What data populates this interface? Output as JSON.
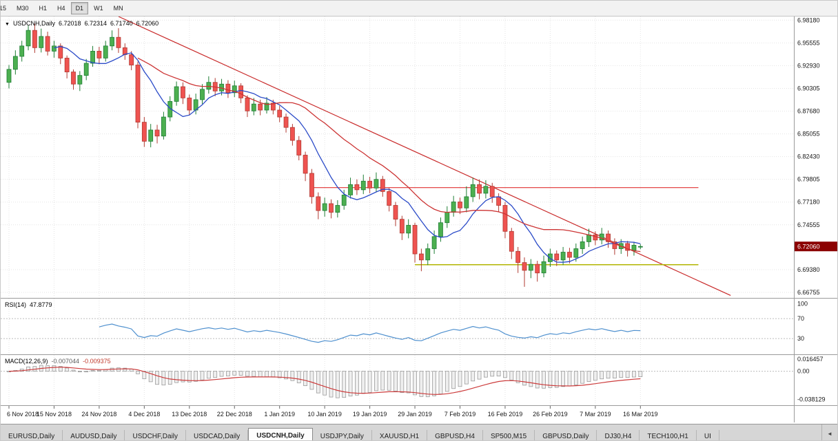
{
  "toolbar": {
    "timeframes": [
      {
        "label": "15",
        "active": false
      },
      {
        "label": "M30",
        "active": false
      },
      {
        "label": "H1",
        "active": false
      },
      {
        "label": "H4",
        "active": false
      },
      {
        "label": "D1",
        "active": true
      },
      {
        "label": "W1",
        "active": false
      },
      {
        "label": "MN",
        "active": false
      }
    ]
  },
  "chart": {
    "title": {
      "symbol": "USDCNH,Daily",
      "open": "6.72018",
      "high": "6.72314",
      "low": "6.71740",
      "close": "6.72060"
    },
    "marker_icon": "▼"
  },
  "colors": {
    "up": "#4caf50",
    "up_border": "#1e7e34",
    "down": "#ef5350",
    "down_border": "#b03a32",
    "ma_fast": "#2b4bc8",
    "ma_slow": "#cc3333",
    "trendline": "#c92a2a",
    "hline": "#e03131",
    "support": "#b2b400",
    "rsi_line": "#4d8fce",
    "macd_signal": "#cc3b3b",
    "macd_bar": "#9a9a9a",
    "price_box_bg": "#8b0000",
    "price_box_text": "#ffffff"
  },
  "chart_data": {
    "type": "candlestick",
    "title": "USDCNH,Daily",
    "y_range": [
      6.662,
      6.986
    ],
    "y_axis_labels": [
      "6.98180",
      "6.95555",
      "6.92930",
      "6.90305",
      "6.87680",
      "6.85055",
      "6.82430",
      "6.79805",
      "6.77180",
      "6.74555",
      "6.69380",
      "6.66755"
    ],
    "current_price": "6.72060",
    "x_tick_indices": [
      0,
      7,
      14,
      21,
      28,
      35,
      42,
      49,
      56,
      63,
      70,
      77,
      84,
      91,
      98
    ],
    "x_tick_labels": [
      "6 Nov 2018",
      "15 Nov 2018",
      "24 Nov 2018",
      "4 Dec 2018",
      "13 Dec 2018",
      "22 Dec 2018",
      "1 Jan 2019",
      "10 Jan 2019",
      "19 Jan 2019",
      "29 Jan 2019",
      "7 Feb 2019",
      "16 Feb 2019",
      "26 Feb 2019",
      "7 Mar 2019",
      "16 Mar 2019"
    ],
    "ohlc": [
      [
        6.91,
        6.93,
        6.903,
        6.925
      ],
      [
        6.925,
        6.947,
        6.919,
        6.94
      ],
      [
        6.94,
        6.958,
        6.934,
        6.952
      ],
      [
        6.952,
        6.9755,
        6.947,
        6.97
      ],
      [
        6.97,
        6.978,
        6.944,
        6.95
      ],
      [
        6.95,
        6.972,
        6.9445,
        6.963
      ],
      [
        6.963,
        6.9685,
        6.941,
        6.946
      ],
      [
        6.946,
        6.958,
        6.9385,
        6.952
      ],
      [
        6.952,
        6.955,
        6.931,
        6.938
      ],
      [
        6.938,
        6.941,
        6.9145,
        6.922
      ],
      [
        6.922,
        6.925,
        6.9015,
        6.908
      ],
      [
        6.908,
        6.923,
        6.9,
        6.918
      ],
      [
        6.918,
        6.937,
        6.9125,
        6.932
      ],
      [
        6.932,
        6.952,
        6.928,
        6.946
      ],
      [
        6.946,
        6.951,
        6.931,
        6.938
      ],
      [
        6.938,
        6.958,
        6.934,
        6.952
      ],
      [
        6.952,
        6.97,
        6.947,
        6.962
      ],
      [
        6.962,
        6.9725,
        6.944,
        6.95
      ],
      [
        6.95,
        6.955,
        6.936,
        6.942
      ],
      [
        6.942,
        6.946,
        6.924,
        6.93
      ],
      [
        6.93,
        6.934,
        6.857,
        6.864
      ],
      [
        6.864,
        6.87,
        6.8355,
        6.842
      ],
      [
        6.842,
        6.862,
        6.835,
        6.855
      ],
      [
        6.855,
        6.861,
        6.8395,
        6.848
      ],
      [
        6.848,
        6.876,
        6.844,
        6.87
      ],
      [
        6.87,
        6.894,
        6.865,
        6.888
      ],
      [
        6.888,
        6.911,
        6.883,
        6.905
      ],
      [
        6.905,
        6.91,
        6.885,
        6.892
      ],
      [
        6.892,
        6.896,
        6.872,
        6.878
      ],
      [
        6.878,
        6.897,
        6.873,
        6.89
      ],
      [
        6.89,
        6.908,
        6.885,
        6.902
      ],
      [
        6.902,
        6.917,
        6.897,
        6.91
      ],
      [
        6.91,
        6.915,
        6.894,
        6.9
      ],
      [
        6.9,
        6.914,
        6.895,
        6.908
      ],
      [
        6.908,
        6.9125,
        6.892,
        6.898
      ],
      [
        6.898,
        6.912,
        6.893,
        6.906
      ],
      [
        6.906,
        6.909,
        6.886,
        6.892
      ],
      [
        6.892,
        6.895,
        6.87,
        6.877
      ],
      [
        6.877,
        6.892,
        6.872,
        6.885
      ],
      [
        6.885,
        6.89,
        6.872,
        6.878
      ],
      [
        6.878,
        6.893,
        6.874,
        6.886
      ],
      [
        6.886,
        6.89,
        6.873,
        6.878
      ],
      [
        6.878,
        6.883,
        6.864,
        6.87
      ],
      [
        6.87,
        6.874,
        6.852,
        6.858
      ],
      [
        6.858,
        6.862,
        6.837,
        6.843
      ],
      [
        6.843,
        6.848,
        6.82,
        6.826
      ],
      [
        6.826,
        6.83,
        6.796,
        6.805
      ],
      [
        6.805,
        6.81,
        6.77,
        6.778
      ],
      [
        6.778,
        6.783,
        6.752,
        6.762
      ],
      [
        6.762,
        6.777,
        6.755,
        6.77
      ],
      [
        6.77,
        6.775,
        6.753,
        6.76
      ],
      [
        6.76,
        6.774,
        6.754,
        6.768
      ],
      [
        6.768,
        6.786,
        6.763,
        6.78
      ],
      [
        6.78,
        6.8,
        6.776,
        6.792
      ],
      [
        6.792,
        6.798,
        6.78,
        6.786
      ],
      [
        6.786,
        6.8035,
        6.781,
        6.796
      ],
      [
        6.796,
        6.801,
        6.782,
        6.788
      ],
      [
        6.788,
        6.806,
        6.783,
        6.798
      ],
      [
        6.798,
        6.802,
        6.778,
        6.784
      ],
      [
        6.784,
        6.788,
        6.761,
        6.768
      ],
      [
        6.768,
        6.772,
        6.744,
        6.752
      ],
      [
        6.752,
        6.756,
        6.728,
        6.736
      ],
      [
        6.736,
        6.752,
        6.73,
        6.745
      ],
      [
        6.745,
        6.748,
        6.702,
        6.712
      ],
      [
        6.712,
        6.718,
        6.692,
        6.705
      ],
      [
        6.705,
        6.724,
        6.699,
        6.718
      ],
      [
        6.718,
        6.739,
        6.712,
        6.732
      ],
      [
        6.732,
        6.754,
        6.726,
        6.748
      ],
      [
        6.748,
        6.767,
        6.742,
        6.76
      ],
      [
        6.76,
        6.779,
        6.755,
        6.772
      ],
      [
        6.772,
        6.777,
        6.758,
        6.765
      ],
      [
        6.765,
        6.79,
        6.76,
        6.778
      ],
      [
        6.778,
        6.8,
        6.772,
        6.792
      ],
      [
        6.792,
        6.798,
        6.775,
        6.782
      ],
      [
        6.782,
        6.797,
        6.776,
        6.79
      ],
      [
        6.79,
        6.794,
        6.771,
        6.778
      ],
      [
        6.778,
        6.782,
        6.76,
        6.768
      ],
      [
        6.768,
        6.772,
        6.73,
        6.738
      ],
      [
        6.738,
        6.742,
        6.706,
        6.715
      ],
      [
        6.715,
        6.72,
        6.69,
        6.702
      ],
      [
        6.702,
        6.708,
        6.674,
        6.693
      ],
      [
        6.693,
        6.706,
        6.684,
        6.7
      ],
      [
        6.7,
        6.704,
        6.68,
        6.69
      ],
      [
        6.69,
        6.71,
        6.685,
        6.703
      ],
      [
        6.703,
        6.718,
        6.697,
        6.712
      ],
      [
        6.712,
        6.716,
        6.698,
        6.705
      ],
      [
        6.705,
        6.72,
        6.699,
        6.714
      ],
      [
        6.714,
        6.719,
        6.701,
        6.708
      ],
      [
        6.708,
        6.724,
        6.703,
        6.718
      ],
      [
        6.718,
        6.732,
        6.712,
        6.726
      ],
      [
        6.726,
        6.741,
        6.72,
        6.734
      ],
      [
        6.734,
        6.738,
        6.722,
        6.728
      ],
      [
        6.728,
        6.742,
        6.723,
        6.735
      ],
      [
        6.735,
        6.739,
        6.719,
        6.726
      ],
      [
        6.726,
        6.73,
        6.711,
        6.718
      ],
      [
        6.718,
        6.729,
        6.712,
        6.724
      ],
      [
        6.724,
        6.727,
        6.709,
        6.716
      ],
      [
        6.716,
        6.726,
        6.71,
        6.722
      ],
      [
        6.72018,
        6.72314,
        6.7174,
        6.7206
      ]
    ],
    "overlays": {
      "ma_fast": {
        "period": 8
      },
      "ma_slow": {
        "period": 21
      },
      "trendline": {
        "x1": 17,
        "p1": 6.986,
        "x2": 112,
        "p2": 6.664
      },
      "hline_red": {
        "price": 6.7885,
        "x1": 47,
        "x2": 107
      },
      "hline_olive": {
        "price": 6.6995,
        "x1": 63,
        "x2": 107
      }
    },
    "rsi": {
      "label": "RSI(14)",
      "value": "47.8779",
      "period": 14,
      "levels": [
        70,
        30
      ],
      "axis_labels": [
        "100",
        "70",
        "30"
      ],
      "range": [
        0,
        110
      ]
    },
    "macd": {
      "label": "MACD(12,26,9)",
      "value_main": "-0.007044",
      "value_signal": "-0.009375",
      "fast": 12,
      "slow": 26,
      "signal": 9,
      "axis_labels": [
        "0.016457",
        "0.00",
        "-0.038129"
      ],
      "range": [
        -0.045,
        0.022
      ]
    }
  },
  "tabs": {
    "items": [
      {
        "label": "EURUSD,Daily",
        "active": false
      },
      {
        "label": "AUDUSD,Daily",
        "active": false
      },
      {
        "label": "USDCHF,Daily",
        "active": false
      },
      {
        "label": "USDCAD,Daily",
        "active": false
      },
      {
        "label": "USDCNH,Daily",
        "active": true
      },
      {
        "label": "USDJPY,Daily",
        "active": false
      },
      {
        "label": "XAUUSD,H1",
        "active": false
      },
      {
        "label": "GBPUSD,H4",
        "active": false
      },
      {
        "label": "SP500,M15",
        "active": false
      },
      {
        "label": "GBPUSD,Daily",
        "active": false
      },
      {
        "label": "DJ30,H4",
        "active": false
      },
      {
        "label": "TECH100,H1",
        "active": false
      },
      {
        "label": "UI",
        "active": false
      }
    ],
    "scroll_left_icon": "◄"
  }
}
